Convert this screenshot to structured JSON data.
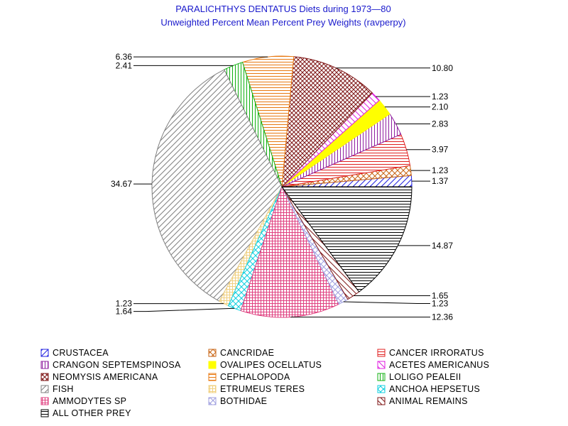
{
  "chart_data": {
    "type": "pie",
    "title": "PARALICHTHYS DENTATUS Diets during 1973—80",
    "subtitle": "Unweighted Percent Mean Percent Prey  Weights (ravperpy)",
    "slices": [
      {
        "name": "CRUSTACEA",
        "value": 1.37,
        "color": "#2020e0",
        "pattern": "diag-up"
      },
      {
        "name": "CANCRIDAE",
        "value": 1.23,
        "color": "#c86414",
        "pattern": "cross-diag"
      },
      {
        "name": "CANCER IRRORATUS",
        "value": 3.97,
        "color": "#e02020",
        "pattern": "horiz"
      },
      {
        "name": "CRANGON SEPTEMSPINOSA",
        "value": 2.83,
        "color": "#9020a0",
        "pattern": "vert"
      },
      {
        "name": "OVALIPES OCELLATUS",
        "value": 2.1,
        "color": "#ffff00",
        "pattern": "solid"
      },
      {
        "name": "ACETES AMERICANUS",
        "value": 1.23,
        "color": "#e020e0",
        "pattern": "diag-down"
      },
      {
        "name": "NEOMYSIS AMERICANA",
        "value": 10.8,
        "color": "#801818",
        "pattern": "cross-diag-dense"
      },
      {
        "name": "CEPHALOPODA",
        "value": 6.36,
        "color": "#e87810",
        "pattern": "horiz"
      },
      {
        "name": "LOLIGO PEALEII",
        "value": 2.41,
        "color": "#10b010",
        "pattern": "vert"
      },
      {
        "name": "FISH",
        "value": 34.67,
        "color": "#808080",
        "pattern": "diag-up"
      },
      {
        "name": "ETRUMEUS TERES",
        "value": 1.23,
        "color": "#f0d080",
        "pattern": "grid"
      },
      {
        "name": "ANCHOA HEPSETUS",
        "value": 1.64,
        "color": "#10d0e0",
        "pattern": "cross-diag"
      },
      {
        "name": "AMMODYTES SP",
        "value": 12.36,
        "color": "#e04080",
        "pattern": "grid"
      },
      {
        "name": "BOTHIDAE",
        "value": 1.23,
        "color": "#a0a0e0",
        "pattern": "cross-diag"
      },
      {
        "name": "ANIMAL REMAINS",
        "value": 1.65,
        "color": "#801818",
        "pattern": "diag-down"
      },
      {
        "name": "ALL OTHER PREY",
        "value": 14.87,
        "color": "#000000",
        "pattern": "horiz"
      }
    ],
    "data_labels": [
      "1.37",
      "1.23",
      "3.97",
      "2.83",
      "2.10",
      "1.23",
      "10.80",
      "6.36",
      "2.41",
      "34.67",
      "1.23",
      "1.64",
      "12.36",
      "1.23",
      "1.65",
      "14.87"
    ],
    "legend_position": "bottom",
    "legend_columns": 3
  }
}
